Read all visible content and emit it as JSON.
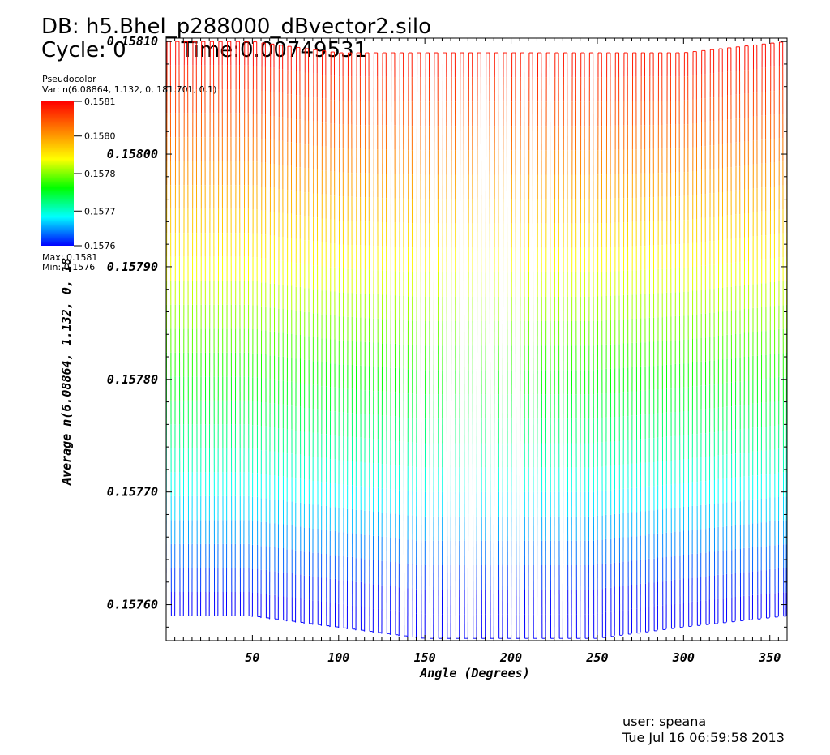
{
  "header": {
    "db": "DB: h5.Bhel_p288000_dBvector2.silo",
    "cycle": "Cycle: 0",
    "time": "Time:0.00749531"
  },
  "legend": {
    "title": "Pseudocolor",
    "var": "Var: n(6.08864, 1.132, 0, 181.701, 0.1)",
    "ticks": [
      "0.1581",
      "0.1580",
      "0.1578",
      "0.1577",
      "0.1576"
    ],
    "tick_values": [
      0.1581,
      0.15798,
      0.15785,
      0.15772,
      0.1576
    ],
    "max": "Max: 0.1581",
    "min": "Min: 0.1576",
    "colors": [
      "#ff0000",
      "#ff8000",
      "#ffff00",
      "#00ff00",
      "#00ffff",
      "#0000ff"
    ]
  },
  "footer": {
    "user": "user: speana",
    "date": "Tue Jul 16 06:59:58 2013"
  },
  "chart_data": {
    "type": "line",
    "xlabel": "Angle (Degrees)",
    "ylabel": "Average n(6.08864, 1.132, 0, 18",
    "xlim": [
      0,
      360
    ],
    "ylim": [
      0.157568,
      0.158103
    ],
    "x_ticks": [
      50,
      100,
      150,
      200,
      250,
      300,
      350
    ],
    "x_tick_labels": [
      "50",
      "100",
      "150",
      "200",
      "250",
      "300",
      "350"
    ],
    "y_ticks": [
      0.1576,
      0.1577,
      0.1578,
      0.1579,
      0.158,
      0.1581
    ],
    "y_tick_labels": [
      "0.15760",
      "0.15770",
      "0.15780",
      "0.15790",
      "0.15800",
      "0.15810"
    ],
    "color_by": "value",
    "oscillations": 72,
    "period_deg": 5,
    "max_value": 0.1581,
    "min_value": 0.1576,
    "series": [
      {
        "x": [
          0,
          50,
          100,
          150,
          200,
          250,
          300,
          360
        ],
        "peak": [
          0.1581,
          0.1581,
          0.15809,
          0.15809,
          0.15809,
          0.15809,
          0.15809,
          0.1581
        ],
        "trough": [
          0.15759,
          0.15759,
          0.15758,
          0.15757,
          0.15757,
          0.15757,
          0.15758,
          0.15759
        ]
      }
    ]
  }
}
